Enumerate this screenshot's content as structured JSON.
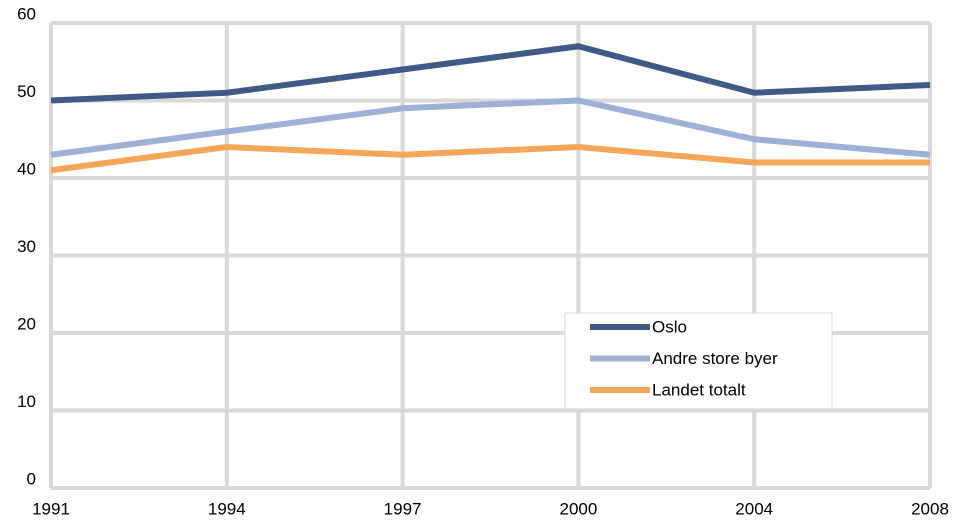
{
  "chart_data": {
    "type": "line",
    "categories": [
      "1991",
      "1994",
      "1997",
      "2000",
      "2004",
      "2008"
    ],
    "series": [
      {
        "name": "Oslo",
        "color": "#3f5a84",
        "values": [
          50,
          51,
          54,
          57,
          51,
          52
        ]
      },
      {
        "name": "Andre store byer",
        "color": "#9db0d5",
        "values": [
          43,
          46,
          49,
          50,
          45,
          43
        ]
      },
      {
        "name": "Landet totalt",
        "color": "#f5a65b",
        "values": [
          41,
          44,
          43,
          44,
          42,
          42
        ]
      }
    ],
    "ylim": [
      0,
      60
    ],
    "yticks": [
      0,
      10,
      20,
      30,
      40,
      50,
      60
    ],
    "grid": true,
    "legend": "lower right"
  }
}
